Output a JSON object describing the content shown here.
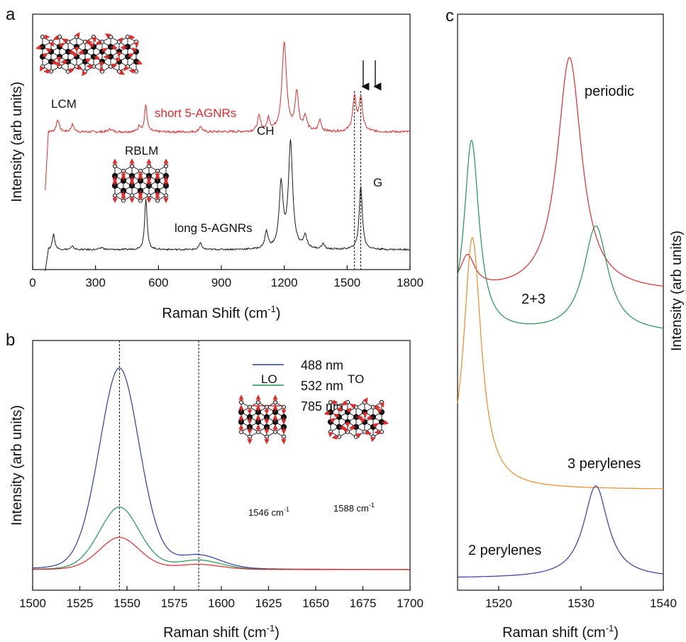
{
  "panel_a": {
    "letter": "a",
    "xlabel": "Raman Shift (cm",
    "xlabel_sup": "-1",
    "xlabel_end": ")",
    "ylabel": "Intensity (arb units)",
    "labels": {
      "lcm": "LCM",
      "short": "short 5-AGNRs",
      "rblm": "RBLM",
      "ch": "CH",
      "long": "long 5-AGNRs",
      "g": "G"
    }
  },
  "panel_b": {
    "letter": "b",
    "xlabel": "Raman shift (cm",
    "xlabel_sup": "-1",
    "xlabel_end": ")",
    "ylabel": "Intensity (arb units)",
    "lo": "LO",
    "to": "TO",
    "lo_value": "1546 cm",
    "to_value": "1588 cm",
    "sup": "-1"
  },
  "panel_c": {
    "letter": "c",
    "xlabel": "Raman shift (cm",
    "xlabel_sup": "-1",
    "xlabel_end": ")",
    "ylabel": "Intensity (arb units)",
    "labels": {
      "periodic": "periodic",
      "two_three": "2+3",
      "three": "3 perylenes",
      "two": "2 perylenes"
    }
  },
  "colors": {
    "red": "#e02b2b",
    "black": "#1a1a1a",
    "blue": "#2b3f9e",
    "green": "#1e9650",
    "orange": "#f08a24"
  },
  "chart_data": [
    {
      "type": "line",
      "panel": "a",
      "xlim": [
        0,
        1800
      ],
      "xticks": [
        0,
        300,
        600,
        900,
        1200,
        1500,
        1800
      ],
      "vlines": [
        1535,
        1565
      ],
      "series": [
        {
          "name": "short 5-AGNRs",
          "color": "#e02b2b",
          "baseline": 0.0,
          "noise": 0.025,
          "start_drop": true,
          "peaks": [
            [
              120,
              0.13,
              8
            ],
            [
              190,
              0.08,
              8
            ],
            [
              370,
              0.03,
              10
            ],
            [
              510,
              0.06,
              8
            ],
            [
              540,
              0.28,
              7
            ],
            [
              800,
              0.06,
              8
            ],
            [
              1080,
              0.16,
              9
            ],
            [
              1125,
              0.13,
              8
            ],
            [
              1200,
              0.92,
              13
            ],
            [
              1260,
              0.4,
              10
            ],
            [
              1300,
              0.15,
              10
            ],
            [
              1370,
              0.12,
              8
            ],
            [
              1535,
              0.35,
              10
            ],
            [
              1565,
              0.35,
              10
            ]
          ]
        },
        {
          "name": "long 5-AGNRs",
          "color": "#1a1a1a",
          "baseline": 0.0,
          "noise": 0.015,
          "start_drop": true,
          "peaks": [
            [
              100,
              0.15,
              7
            ],
            [
              190,
              0.03,
              8
            ],
            [
              330,
              0.02,
              10
            ],
            [
              540,
              0.48,
              7
            ],
            [
              800,
              0.06,
              8
            ],
            [
              1115,
              0.16,
              9
            ],
            [
              1185,
              0.6,
              11
            ],
            [
              1230,
              1.0,
              12
            ],
            [
              1300,
              0.12,
              10
            ],
            [
              1385,
              0.05,
              8
            ],
            [
              1565,
              0.6,
              9
            ]
          ]
        }
      ],
      "peak_labels": [
        "LCM",
        "RBLM",
        "CH",
        "G"
      ]
    },
    {
      "type": "line",
      "panel": "b",
      "xlim": [
        1500,
        1700
      ],
      "xticks": [
        1500,
        1525,
        1550,
        1575,
        1600,
        1625,
        1650,
        1675,
        1700
      ],
      "vlines": [
        1546,
        1588
      ],
      "series": [
        {
          "name": "488 nm",
          "color": "#2b3f9e",
          "peaks": [
            [
              1546,
              1.0,
              11
            ],
            [
              1588,
              0.065,
              12
            ]
          ]
        },
        {
          "name": "532 nm",
          "color": "#1e9650",
          "peaks": [
            [
              1546,
              0.31,
              11
            ],
            [
              1588,
              0.045,
              12
            ]
          ]
        },
        {
          "name": "785 nm",
          "color": "#e02b2b",
          "peaks": [
            [
              1546,
              0.16,
              11
            ],
            [
              1588,
              0.025,
              12
            ]
          ]
        }
      ]
    },
    {
      "type": "line",
      "panel": "c",
      "xlim": [
        1515,
        1540
      ],
      "xticks": [
        1520,
        1530,
        1540
      ],
      "series": [
        {
          "name": "periodic",
          "color": "#e02b2b",
          "peaks": [
            [
              1516.2,
              0.14,
              1.1
            ],
            [
              1528.6,
              1.0,
              1.8
            ]
          ]
        },
        {
          "name": "2+3",
          "color": "#1e9650",
          "peaks": [
            [
              1516.7,
              0.9,
              1.1
            ],
            [
              1531.8,
              0.5,
              1.8
            ]
          ]
        },
        {
          "name": "3 perylenes",
          "color": "#f08a24",
          "peaks": [
            [
              1516.8,
              1.0,
              1.3
            ]
          ]
        },
        {
          "name": "2 perylenes",
          "color": "#2b3f9e",
          "peaks": [
            [
              1531.8,
              1.0,
              1.8
            ]
          ]
        }
      ]
    }
  ]
}
